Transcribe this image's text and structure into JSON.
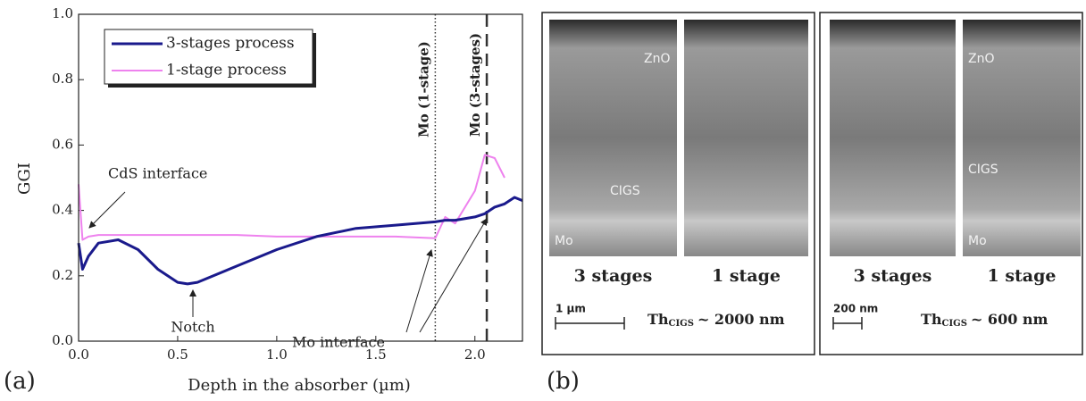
{
  "chart_data": {
    "type": "line",
    "panel_label": "(a)",
    "xlabel": "Depth in the absorber (µm)",
    "ylabel": "GGI",
    "x": [
      0,
      0.02,
      0.05,
      0.1,
      0.2,
      0.3,
      0.4,
      0.5,
      0.55,
      0.6,
      0.8,
      1.0,
      1.2,
      1.4,
      1.6,
      1.8,
      1.85,
      1.9,
      2.0,
      2.05,
      2.1,
      2.15,
      2.2,
      2.24
    ],
    "series": [
      {
        "name": "3-stages process",
        "color": "#1a1a8c",
        "values": [
          0.3,
          0.22,
          0.26,
          0.3,
          0.31,
          0.28,
          0.22,
          0.18,
          0.175,
          0.18,
          0.23,
          0.28,
          0.32,
          0.345,
          0.355,
          0.365,
          0.37,
          0.37,
          0.38,
          0.39,
          0.41,
          0.42,
          0.44,
          0.43
        ]
      },
      {
        "name": "1-stage process",
        "color": "#ee82ee",
        "values": [
          0.48,
          0.31,
          0.32,
          0.325,
          0.325,
          0.325,
          0.325,
          0.325,
          0.325,
          0.325,
          0.325,
          0.32,
          0.32,
          0.32,
          0.32,
          0.315,
          0.38,
          0.36,
          0.46,
          0.57,
          0.56,
          0.5,
          null,
          null
        ]
      }
    ],
    "vlines": [
      {
        "x": 1.8,
        "label": "Mo (1-stage)",
        "style": "dotted"
      },
      {
        "x": 2.06,
        "label": "Mo (3-stages)",
        "style": "dashed"
      }
    ],
    "annotations": [
      "CdS interface",
      "Notch",
      "Mo interface"
    ],
    "xlim": [
      0,
      2.24
    ],
    "ylim": [
      0,
      1
    ],
    "xticks": [
      {
        "value": 0,
        "label": "0.0"
      },
      {
        "value": 0.5,
        "label": "0.5"
      },
      {
        "value": 1,
        "label": "1.0"
      },
      {
        "value": 1.5,
        "label": "1.5"
      },
      {
        "value": 2,
        "label": "2.0"
      }
    ],
    "yticks": [
      {
        "value": 0,
        "label": "0.0"
      },
      {
        "value": 0.2,
        "label": "0.2"
      },
      {
        "value": 0.4,
        "label": "0.4"
      },
      {
        "value": 0.6,
        "label": "0.6"
      },
      {
        "value": 0.8,
        "label": "0.8"
      },
      {
        "value": 1,
        "label": "1.0"
      }
    ],
    "legend": "upper left"
  },
  "panel_b": {
    "label": "(b)",
    "boxes": [
      {
        "images": [
          {
            "caption": "3 stages",
            "labels": [
              "ZnO",
              "CIGS",
              "Mo"
            ]
          },
          {
            "caption": "1 stage",
            "labels": []
          }
        ],
        "scale": "1 µm",
        "thickness": [
          "Th",
          "CIGS",
          "~ 2000 nm"
        ]
      },
      {
        "images": [
          {
            "caption": "3 stages",
            "labels": []
          },
          {
            "caption": "1 stage",
            "labels": [
              "ZnO",
              "CIGS",
              "Mo"
            ]
          }
        ],
        "scale": "200 nm",
        "thickness": [
          "Th",
          "CIGS",
          "~ 600 nm"
        ]
      }
    ]
  }
}
